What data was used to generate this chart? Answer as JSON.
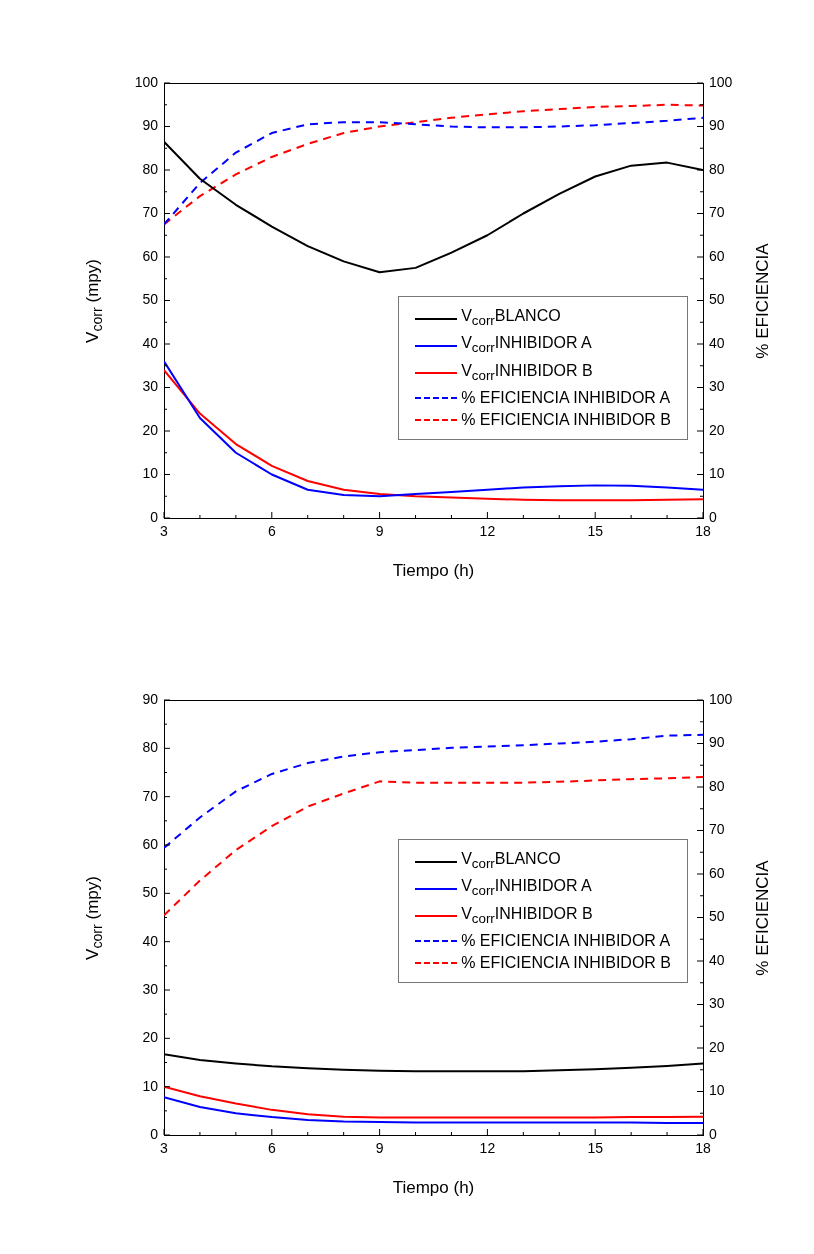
{
  "chart_data": [
    {
      "type": "line",
      "xlabel": "Tiempo (h)",
      "ylabel": "V$_{corr}$ (mpy)",
      "y2label": "% EFICIENCIA",
      "legend": "right",
      "x": [
        3,
        4,
        5,
        6,
        7,
        8,
        9,
        10,
        11,
        12,
        13,
        14,
        15,
        16,
        17,
        18
      ],
      "xlim": [
        3,
        18
      ],
      "xticks": [
        3,
        {
          "value": 4,
          "label": null
        },
        {
          "value": 5,
          "label": null
        },
        6,
        {
          "value": 7,
          "label": null
        },
        {
          "value": 8,
          "label": null
        },
        9,
        {
          "value": 10,
          "label": null
        },
        {
          "value": 11,
          "label": null
        },
        12,
        {
          "value": 13,
          "label": null
        },
        {
          "value": 14,
          "label": null
        },
        15,
        {
          "value": 16,
          "label": null
        },
        {
          "value": 17,
          "label": null
        },
        18
      ],
      "ylim": [
        0,
        100
      ],
      "yticks": [
        0,
        {
          "value": 5,
          "label": null
        },
        10,
        {
          "value": 15,
          "label": null
        },
        20,
        {
          "value": 25,
          "label": null
        },
        30,
        {
          "value": 35,
          "label": null
        },
        40,
        {
          "value": 45,
          "label": null
        },
        50,
        {
          "value": 55,
          "label": null
        },
        60,
        {
          "value": 65,
          "label": null
        },
        70,
        {
          "value": 75,
          "label": null
        },
        80,
        {
          "value": 85,
          "label": null
        },
        90,
        {
          "value": 95,
          "label": null
        },
        100
      ],
      "y2lim": [
        0,
        100
      ],
      "y2ticks": [
        0,
        {
          "value": 5,
          "label": null
        },
        10,
        {
          "value": 15,
          "label": null
        },
        20,
        {
          "value": 25,
          "label": null
        },
        30,
        {
          "value": 35,
          "label": null
        },
        40,
        {
          "value": 45,
          "label": null
        },
        50,
        {
          "value": 55,
          "label": null
        },
        60,
        {
          "value": 65,
          "label": null
        },
        70,
        {
          "value": 75,
          "label": null
        },
        80,
        {
          "value": 85,
          "label": null
        },
        90,
        {
          "value": 95,
          "label": null
        },
        100
      ],
      "marker": "none",
      "series": [
        {
          "name": "V$_{corr}$BLANCO",
          "color": "#000000",
          "line_style": "solid",
          "values": [
            86.5,
            78,
            72,
            67,
            62.5,
            59,
            56.5,
            57.5,
            61,
            65,
            70,
            74.5,
            78.5,
            81,
            81.7,
            80
          ]
        },
        {
          "name": "V$_{corr}$INHIBIDOR A",
          "color": "#0000ff",
          "line_style": "solid",
          "values": [
            36,
            23,
            15,
            10,
            6.5,
            5.3,
            5,
            5.5,
            6,
            6.5,
            7,
            7.3,
            7.5,
            7.4,
            7,
            6.5
          ]
        },
        {
          "name": "V$_{corr}$INHIBIDOR B",
          "color": "#ff0000",
          "line_style": "solid",
          "values": [
            34,
            24,
            17,
            12,
            8.5,
            6.5,
            5.5,
            5,
            4.7,
            4.4,
            4.2,
            4.1,
            4.1,
            4.1,
            4.2,
            4.3
          ]
        },
        {
          "name": "% EFICIENCIA INHIBIDOR A",
          "color": "#0000ff",
          "line_style": "dashed",
          "axis": "y2",
          "values": [
            67.5,
            77,
            84,
            88.5,
            90.5,
            91,
            91,
            90.5,
            90,
            89.8,
            89.8,
            90,
            90.3,
            90.8,
            91.3,
            92
          ]
        },
        {
          "name": "% EFICIENCIA INHIBIDOR B",
          "color": "#ff0000",
          "line_style": "dashed",
          "axis": "y2",
          "values": [
            67.5,
            74,
            79,
            83,
            86,
            88.5,
            90,
            91,
            92,
            92.8,
            93.5,
            94,
            94.5,
            94.7,
            95,
            94.8
          ]
        }
      ]
    },
    {
      "type": "line",
      "xlabel": "Tiempo (h)",
      "ylabel": "V$_{corr}$ (mpy)",
      "y2label": "% EFICIENCIA",
      "legend": "right",
      "x": [
        3,
        4,
        5,
        6,
        7,
        8,
        9,
        10,
        11,
        12,
        13,
        14,
        15,
        16,
        17,
        18
      ],
      "xlim": [
        3,
        18
      ],
      "xticks": [
        3,
        {
          "value": 4,
          "label": null
        },
        {
          "value": 5,
          "label": null
        },
        6,
        {
          "value": 7,
          "label": null
        },
        {
          "value": 8,
          "label": null
        },
        9,
        {
          "value": 10,
          "label": null
        },
        {
          "value": 11,
          "label": null
        },
        12,
        {
          "value": 13,
          "label": null
        },
        {
          "value": 14,
          "label": null
        },
        15,
        {
          "value": 16,
          "label": null
        },
        {
          "value": 17,
          "label": null
        },
        18
      ],
      "ylim": [
        0,
        90
      ],
      "yticks": [
        0,
        {
          "value": 5,
          "label": null
        },
        10,
        {
          "value": 15,
          "label": null
        },
        20,
        {
          "value": 25,
          "label": null
        },
        30,
        {
          "value": 35,
          "label": null
        },
        40,
        {
          "value": 45,
          "label": null
        },
        50,
        {
          "value": 55,
          "label": null
        },
        60,
        {
          "value": 65,
          "label": null
        },
        70,
        {
          "value": 75,
          "label": null
        },
        80,
        {
          "value": 85,
          "label": null
        },
        90
      ],
      "y2lim": [
        0,
        100
      ],
      "y2ticks": [
        0,
        {
          "value": 5,
          "label": null
        },
        10,
        {
          "value": 15,
          "label": null
        },
        20,
        {
          "value": 25,
          "label": null
        },
        30,
        {
          "value": 35,
          "label": null
        },
        40,
        {
          "value": 45,
          "label": null
        },
        50,
        {
          "value": 55,
          "label": null
        },
        60,
        {
          "value": 65,
          "label": null
        },
        70,
        {
          "value": 75,
          "label": null
        },
        80,
        {
          "value": 85,
          "label": null
        },
        90,
        {
          "value": 95,
          "label": null
        },
        100
      ],
      "marker": "none",
      "series": [
        {
          "name": "V$_{corr}$BLANCO",
          "color": "#000000",
          "line_style": "solid",
          "values": [
            16.7,
            15.5,
            14.8,
            14.2,
            13.8,
            13.5,
            13.3,
            13.2,
            13.2,
            13.2,
            13.2,
            13.4,
            13.6,
            13.9,
            14.3,
            14.8
          ]
        },
        {
          "name": "V$_{corr}$INHIBIDOR A",
          "color": "#0000ff",
          "line_style": "solid",
          "values": [
            7.8,
            5.8,
            4.5,
            3.7,
            3.1,
            2.8,
            2.7,
            2.6,
            2.6,
            2.6,
            2.6,
            2.6,
            2.6,
            2.6,
            2.5,
            2.5
          ]
        },
        {
          "name": "V$_{corr}$INHIBIDOR B",
          "color": "#ff0000",
          "line_style": "solid",
          "values": [
            10,
            8,
            6.5,
            5.2,
            4.3,
            3.8,
            3.6,
            3.6,
            3.6,
            3.6,
            3.6,
            3.6,
            3.6,
            3.7,
            3.7,
            3.8
          ]
        },
        {
          "name": "% EFICIENCIA INHIBIDOR A",
          "color": "#0000ff",
          "line_style": "dashed",
          "axis": "y2",
          "values": [
            66,
            73,
            79,
            83,
            85.5,
            87,
            88,
            88.5,
            89,
            89.3,
            89.6,
            90,
            90.4,
            91,
            91.8,
            92
          ]
        },
        {
          "name": "% EFICIENCIA INHIBIDOR B",
          "color": "#ff0000",
          "line_style": "dashed",
          "axis": "y2",
          "values": [
            50.5,
            58.5,
            65.5,
            71,
            75.5,
            78.5,
            81.3,
            81,
            81,
            81,
            81,
            81.2,
            81.5,
            81.8,
            82,
            82.3
          ]
        }
      ]
    }
  ]
}
